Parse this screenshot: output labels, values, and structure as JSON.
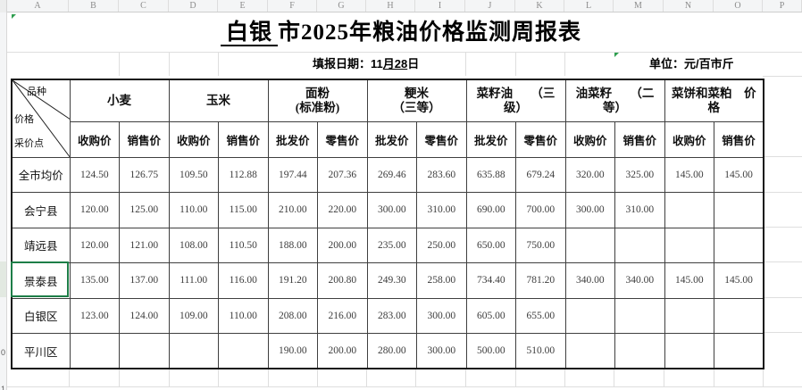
{
  "spreadsheet": {
    "column_letters": [
      "A",
      "B",
      "C",
      "D",
      "E",
      "F",
      "G",
      "H",
      "I",
      "J",
      "K",
      "L",
      "M",
      "N",
      "O",
      "P"
    ],
    "row_number_slivers": [
      "0",
      "1"
    ]
  },
  "title": {
    "underlined": "白银",
    "rest": "市2025年粮油价格监测周报表"
  },
  "meta": {
    "date_label": "填报日期：",
    "date_prefix": "11",
    "date_underlined": "月28",
    "date_suffix": "日",
    "unit_text": "单位：元/百市斤"
  },
  "table": {
    "corner": {
      "top": "品种",
      "middle": "价格",
      "bottom": "采价点"
    },
    "groups": [
      {
        "line1": "小麦",
        "line2": ""
      },
      {
        "line1": "玉米",
        "line2": ""
      },
      {
        "line1": "面粉",
        "line2": "(标准粉)"
      },
      {
        "line1": "粳米",
        "line2": "（三等）"
      },
      {
        "line1": "菜籽油　　（三",
        "line2": "级）"
      },
      {
        "line1": "油菜籽　　（二",
        "line2": "等）"
      },
      {
        "line1": "菜饼和菜粕　价",
        "line2": "格"
      }
    ],
    "subheaders": [
      "收购价",
      "销售价",
      "收购价",
      "销售价",
      "批发价",
      "零售价",
      "批发价",
      "零售价",
      "批发价",
      "零售价",
      "收购价",
      "销售价",
      "收购价",
      "销售价"
    ],
    "rows": [
      {
        "label": "全市均价",
        "values": [
          "124.50",
          "126.75",
          "109.50",
          "112.88",
          "197.44",
          "207.36",
          "269.46",
          "283.60",
          "635.88",
          "679.24",
          "320.00",
          "325.00",
          "145.00",
          "145.00"
        ]
      },
      {
        "label": "会宁县",
        "values": [
          "120.00",
          "125.00",
          "110.00",
          "115.00",
          "210.00",
          "220.00",
          "300.00",
          "310.00",
          "690.00",
          "700.00",
          "300.00",
          "310.00",
          "",
          ""
        ]
      },
      {
        "label": "靖远县",
        "values": [
          "120.00",
          "121.00",
          "108.00",
          "110.50",
          "188.00",
          "200.00",
          "235.00",
          "250.00",
          "650.00",
          "750.00",
          "",
          "",
          "",
          ""
        ]
      },
      {
        "label": "景泰县",
        "values": [
          "135.00",
          "137.00",
          "111.00",
          "116.00",
          "191.20",
          "200.80",
          "249.30",
          "258.00",
          "734.40",
          "781.20",
          "340.00",
          "340.00",
          "145.00",
          "145.00"
        ]
      },
      {
        "label": "白银区",
        "values": [
          "123.00",
          "124.00",
          "109.00",
          "110.00",
          "208.00",
          "216.00",
          "283.00",
          "300.00",
          "605.00",
          "655.00",
          "",
          "",
          "",
          ""
        ]
      },
      {
        "label": "平川区",
        "values": [
          "",
          "",
          "",
          "",
          "190.00",
          "200.00",
          "280.00",
          "300.00",
          "500.00",
          "510.00",
          "",
          "",
          "",
          ""
        ]
      }
    ]
  },
  "colors": {
    "selection_green": "#1e7e48",
    "flag_green": "#2e9e4f",
    "grid_dark": "#3f3f3f"
  }
}
